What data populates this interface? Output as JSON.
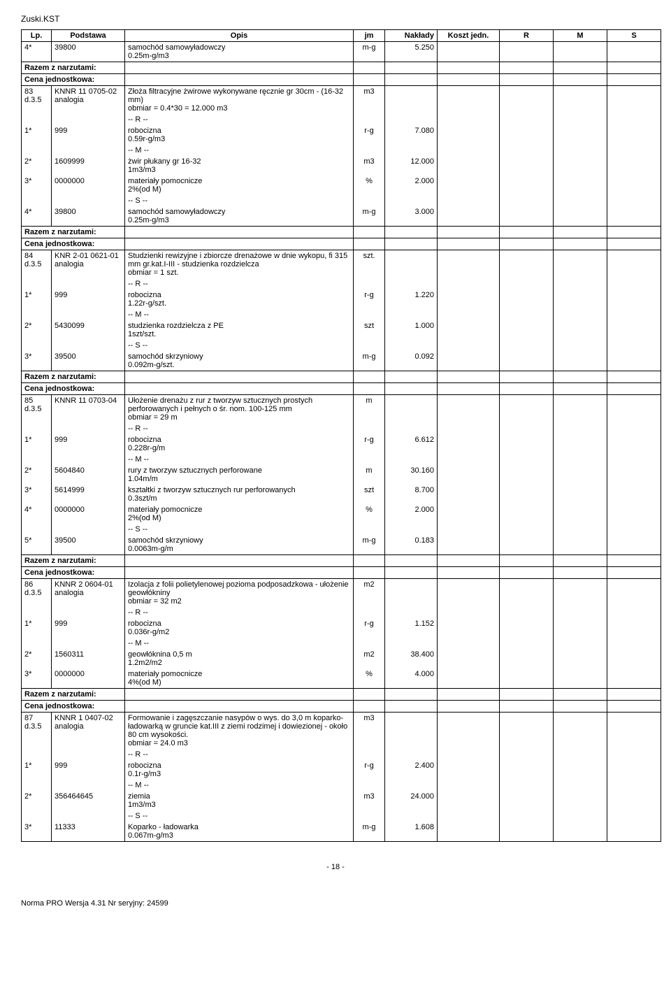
{
  "doc_title": "Zuski.KST",
  "headers": {
    "lp": "Lp.",
    "podstawa": "Podstawa",
    "opis": "Opis",
    "jm": "jm",
    "naklady": "Nakłady",
    "koszt": "Koszt jedn.",
    "r": "R",
    "m": "M",
    "s": "S"
  },
  "labels": {
    "razem": "Razem z narzutami:",
    "cena": "Cena jednostkowa:",
    "r_marker": "-- R --",
    "m_marker": "-- M --",
    "s_marker": "-- S --"
  },
  "rows": [
    {
      "type": "item-header",
      "lp": "4*",
      "pod": "39800",
      "opis": "samochód samowyładowczy\n0.25m-g/m3",
      "jm": "m-g",
      "nak": "5.250"
    },
    {
      "type": "section",
      "text": "Razem z narzutami:"
    },
    {
      "type": "section",
      "text": "Cena jednostkowa:"
    },
    {
      "type": "item-header",
      "lp": "83\nd.3.5",
      "pod": "KNNR 11 0705-02\nanalogia",
      "opis": "Złoża filtracyjne  żwirowe wykonywane ręcznie gr 30cm - (16-32 mm)\nobmiar  = 0.4*30 = 12.000 m3",
      "jm": "m3",
      "nak": ""
    },
    {
      "type": "sub",
      "lp": "",
      "pod": "",
      "opis": "-- R --",
      "jm": "",
      "nak": ""
    },
    {
      "type": "sub",
      "lp": "1*",
      "pod": "999",
      "opis": "robocizna\n0.59r-g/m3",
      "jm": "r-g",
      "nak": "7.080"
    },
    {
      "type": "sub",
      "lp": "",
      "pod": "",
      "opis": "-- M --",
      "jm": "",
      "nak": ""
    },
    {
      "type": "sub",
      "lp": "2*",
      "pod": "1609999",
      "opis": "żwir płukany  gr 16-32\n1m3/m3",
      "jm": "m3",
      "nak": "12.000"
    },
    {
      "type": "sub",
      "lp": "3*",
      "pod": "0000000",
      "opis": "materiały pomocnicze\n2%(od M)",
      "jm": "%",
      "nak": "2.000"
    },
    {
      "type": "sub",
      "lp": "",
      "pod": "",
      "opis": "-- S --",
      "jm": "",
      "nak": ""
    },
    {
      "type": "sub",
      "lp": "4*",
      "pod": "39800",
      "opis": "samochód samowyładowczy\n0.25m-g/m3",
      "jm": "m-g",
      "nak": "3.000"
    },
    {
      "type": "section",
      "text": "Razem z narzutami:"
    },
    {
      "type": "section",
      "text": "Cena jednostkowa:"
    },
    {
      "type": "item-header",
      "lp": "84\nd.3.5",
      "pod": "KNR 2-01 0621-01\nanalogia",
      "opis": "Studzienki rewizyjne i zbiorcze drenażowe w dnie wykopu, fi 315 mm gr.kat.I-III - studzienka rozdzielcza\nobmiar  = 1 szt.",
      "jm": "szt.",
      "nak": ""
    },
    {
      "type": "sub",
      "lp": "",
      "pod": "",
      "opis": "-- R --",
      "jm": "",
      "nak": ""
    },
    {
      "type": "sub",
      "lp": "1*",
      "pod": "999",
      "opis": "robocizna\n1.22r-g/szt.",
      "jm": "r-g",
      "nak": "1.220"
    },
    {
      "type": "sub",
      "lp": "",
      "pod": "",
      "opis": "-- M --",
      "jm": "",
      "nak": ""
    },
    {
      "type": "sub",
      "lp": "2*",
      "pod": "5430099",
      "opis": "studzienka rozdzielcza z PE\n1szt/szt.",
      "jm": "szt",
      "nak": "1.000"
    },
    {
      "type": "sub",
      "lp": "",
      "pod": "",
      "opis": "-- S --",
      "jm": "",
      "nak": ""
    },
    {
      "type": "sub",
      "lp": "3*",
      "pod": "39500",
      "opis": "samochód skrzyniowy\n0.092m-g/szt.",
      "jm": "m-g",
      "nak": "0.092"
    },
    {
      "type": "section",
      "text": "Razem z narzutami:"
    },
    {
      "type": "section",
      "text": "Cena jednostkowa:"
    },
    {
      "type": "item-header",
      "lp": "85\nd.3.5",
      "pod": "KNNR 11 0703-04",
      "opis": "Ułożenie drenażu z rur z tworzyw sztucznych prostych perforowanych i pełnych o śr. nom. 100-125 mm\nobmiar  = 29 m",
      "jm": "m",
      "nak": ""
    },
    {
      "type": "sub",
      "lp": "",
      "pod": "",
      "opis": "-- R --",
      "jm": "",
      "nak": ""
    },
    {
      "type": "sub",
      "lp": "1*",
      "pod": "999",
      "opis": "robocizna\n0.228r-g/m",
      "jm": "r-g",
      "nak": "6.612"
    },
    {
      "type": "sub",
      "lp": "",
      "pod": "",
      "opis": "-- M --",
      "jm": "",
      "nak": ""
    },
    {
      "type": "sub",
      "lp": "2*",
      "pod": "5604840",
      "opis": "rury z tworzyw sztucznych perforowane\n1.04m/m",
      "jm": "m",
      "nak": "30.160"
    },
    {
      "type": "sub",
      "lp": "3*",
      "pod": "5614999",
      "opis": "kształtki z tworzyw sztucznych rur perforowanych\n0.3szt/m",
      "jm": "szt",
      "nak": "8.700"
    },
    {
      "type": "sub",
      "lp": "4*",
      "pod": "0000000",
      "opis": "materiały pomocnicze\n2%(od M)",
      "jm": "%",
      "nak": "2.000"
    },
    {
      "type": "sub",
      "lp": "",
      "pod": "",
      "opis": "-- S --",
      "jm": "",
      "nak": ""
    },
    {
      "type": "sub",
      "lp": "5*",
      "pod": "39500",
      "opis": "samochód skrzyniowy\n0.0063m-g/m",
      "jm": "m-g",
      "nak": "0.183"
    },
    {
      "type": "section",
      "text": "Razem z narzutami:"
    },
    {
      "type": "section",
      "text": "Cena jednostkowa:"
    },
    {
      "type": "item-header",
      "lp": "86\nd.3.5",
      "pod": "KNNR 2 0604-01\nanalogia",
      "opis": "Izolacja z folii polietylenowej pozioma podposadzkowa - ułożenie geowłókniny\nobmiar  = 32 m2",
      "jm": "m2",
      "nak": ""
    },
    {
      "type": "sub",
      "lp": "",
      "pod": "",
      "opis": "-- R --",
      "jm": "",
      "nak": ""
    },
    {
      "type": "sub",
      "lp": "1*",
      "pod": "999",
      "opis": "robocizna\n0.036r-g/m2",
      "jm": "r-g",
      "nak": "1.152"
    },
    {
      "type": "sub",
      "lp": "",
      "pod": "",
      "opis": "-- M --",
      "jm": "",
      "nak": ""
    },
    {
      "type": "sub",
      "lp": "2*",
      "pod": "1560311",
      "opis": "geowłóknina 0,5 m\n1.2m2/m2",
      "jm": "m2",
      "nak": "38.400"
    },
    {
      "type": "sub",
      "lp": "3*",
      "pod": "0000000",
      "opis": "materiały pomocnicze\n4%(od M)",
      "jm": "%",
      "nak": "4.000"
    },
    {
      "type": "section",
      "text": "Razem z narzutami:"
    },
    {
      "type": "section",
      "text": "Cena jednostkowa:"
    },
    {
      "type": "item-header",
      "lp": "87\nd.3.5",
      "pod": "KNNR 1 0407-02\nanalogia",
      "opis": "Formowanie i zagęszczanie nasypów o wys. do 3,0 m koparko- ładowarką w gruncie kat.III z ziemi rodzimej i dowiezionej - około 80 cm wysokości.\nobmiar  = 24.0 m3",
      "jm": "m3",
      "nak": ""
    },
    {
      "type": "sub",
      "lp": "",
      "pod": "",
      "opis": "-- R --",
      "jm": "",
      "nak": ""
    },
    {
      "type": "sub",
      "lp": "1*",
      "pod": "999",
      "opis": "robocizna\n0.1r-g/m3",
      "jm": "r-g",
      "nak": "2.400"
    },
    {
      "type": "sub",
      "lp": "",
      "pod": "",
      "opis": "-- M --",
      "jm": "",
      "nak": ""
    },
    {
      "type": "sub",
      "lp": "2*",
      "pod": "356464645",
      "opis": "ziemia\n1m3/m3",
      "jm": "m3",
      "nak": "24.000"
    },
    {
      "type": "sub",
      "lp": "",
      "pod": "",
      "opis": "-- S --",
      "jm": "",
      "nak": ""
    },
    {
      "type": "sub-last",
      "lp": "3*",
      "pod": "11333",
      "opis": "Koparko - ładowarka\n0.067m-g/m3",
      "jm": "m-g",
      "nak": "1.608"
    }
  ],
  "page_num": "- 18 -",
  "footer": "Norma PRO Wersja 4.31 Nr seryjny: 24599"
}
